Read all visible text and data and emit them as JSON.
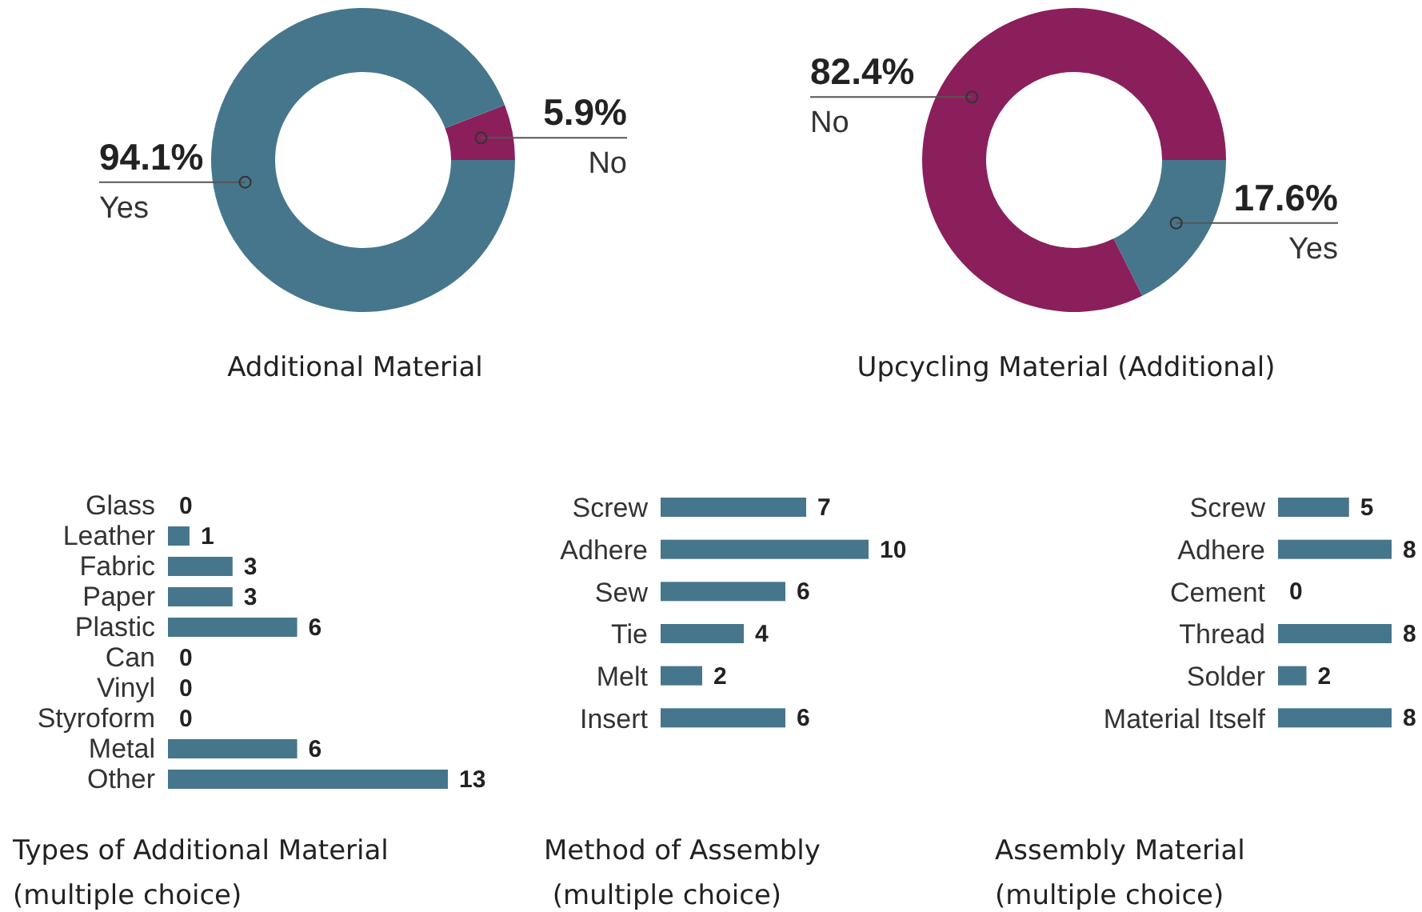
{
  "chart_data": [
    {
      "type": "donut",
      "title": "Additional Material",
      "categories": [
        "No",
        "Yes"
      ],
      "values": [
        5.9,
        94.1
      ],
      "colors": [
        "#8b1f5c",
        "#46768b"
      ],
      "value_labels": [
        "5.9%",
        "94.1%"
      ]
    },
    {
      "type": "donut",
      "title": "Upcycling Material (Additional)",
      "categories": [
        "Yes",
        "No"
      ],
      "values": [
        17.6,
        82.4
      ],
      "colors": [
        "#46768b",
        "#8b1f5c"
      ],
      "value_labels": [
        "17.6%",
        "82.4%"
      ]
    },
    {
      "type": "bar",
      "orientation": "horizontal",
      "title": "Types of Additional Material\n(multiple choice)",
      "categories": [
        "Glass",
        "Leather",
        "Fabric",
        "Paper",
        "Plastic",
        "Can",
        "Vinyl",
        "Styroform",
        "Metal",
        "Other"
      ],
      "values": [
        0,
        1,
        3,
        3,
        6,
        0,
        0,
        0,
        6,
        13
      ],
      "color": "#46768b",
      "data_labels": true
    },
    {
      "type": "bar",
      "orientation": "horizontal",
      "title": "Method of Assembly\n (multiple choice)",
      "categories": [
        "Screw",
        "Adhere",
        "Sew",
        "Tie",
        "Melt",
        "Insert"
      ],
      "values": [
        7,
        10,
        6,
        4,
        2,
        6
      ],
      "color": "#46768b",
      "data_labels": true
    },
    {
      "type": "bar",
      "orientation": "horizontal",
      "title": "Assembly Material\n(multiple choice)",
      "categories": [
        "Screw",
        "Adhere",
        "Cement",
        "Thread",
        "Solder",
        "Material Itself"
      ],
      "values": [
        5,
        8,
        0,
        8,
        2,
        8
      ],
      "color": "#46768b",
      "data_labels": true
    }
  ]
}
